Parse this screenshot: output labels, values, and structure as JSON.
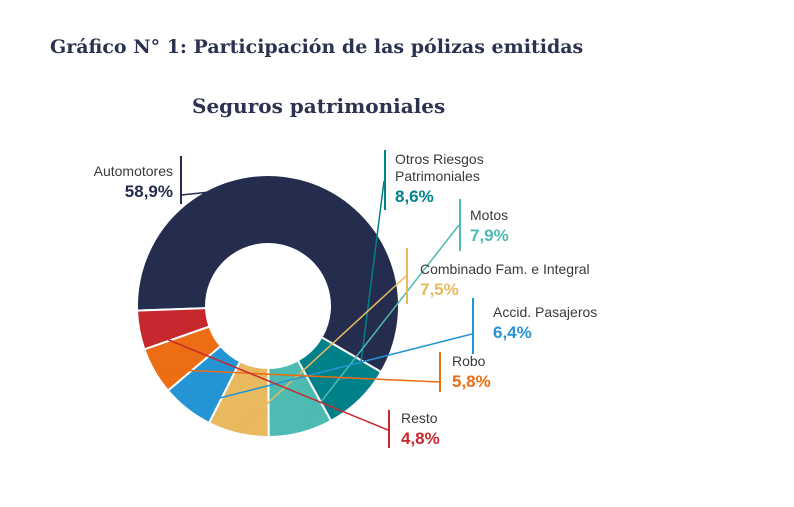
{
  "figure_title": "Gráfico N° 1: Participación de las pólizas emitidas",
  "chart_data": {
    "type": "pie",
    "title": "Seguros patrimoniales",
    "donut": true,
    "unit": "%",
    "slices": [
      {
        "label": "Automotores",
        "value": 58.9,
        "display": "58,9%",
        "color": "#242d4e"
      },
      {
        "label": "Otros Riesgos Patrimoniales",
        "label_lines": [
          "Otros Riesgos",
          "Patrimoniales"
        ],
        "value": 8.6,
        "display": "8,6%",
        "color": "#00818a"
      },
      {
        "label": "Motos",
        "value": 7.9,
        "display": "7,9%",
        "color": "#4dbbb2"
      },
      {
        "label": "Combinado Fam. e Integral",
        "value": 7.5,
        "display": "7,5%",
        "color": "#e8b95e"
      },
      {
        "label": "Accid. Pasajeros",
        "value": 6.4,
        "display": "6,4%",
        "color": "#2594d4"
      },
      {
        "label": "Robo",
        "value": 5.8,
        "display": "5,8%",
        "color": "#ec6d13"
      },
      {
        "label": "Resto",
        "value": 4.8,
        "display": "4,8%",
        "color": "#c6282d"
      }
    ]
  }
}
